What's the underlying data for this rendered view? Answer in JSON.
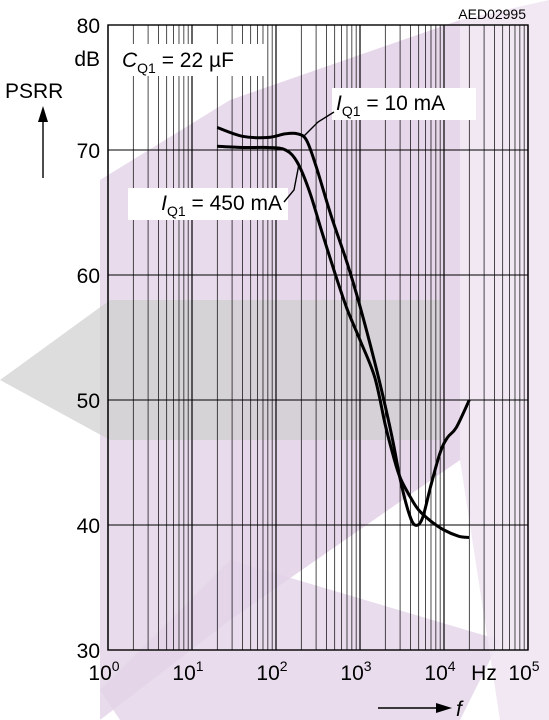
{
  "figure_id": "AED02995",
  "chart_data": {
    "type": "line",
    "y_unit": "dB",
    "ylabel": "PSRR",
    "xlabel": "f",
    "x_unit": "Hz",
    "x_scale": "log",
    "xlim": [
      1,
      100000
    ],
    "ylim": [
      30,
      80
    ],
    "grid": true,
    "x_ticks": [
      {
        "base": "10",
        "exp": "0"
      },
      {
        "base": "10",
        "exp": "1"
      },
      {
        "base": "10",
        "exp": "2"
      },
      {
        "base": "10",
        "exp": "3"
      },
      {
        "base": "10",
        "exp": "4"
      },
      {
        "base": "10",
        "exp": "5"
      }
    ],
    "y_ticks": [
      "30",
      "40",
      "50",
      "60",
      "70",
      "80"
    ],
    "condition": {
      "symbol": "C",
      "sub": "Q1",
      "value": "= 22 µF"
    },
    "series": [
      {
        "label": {
          "symbol": "I",
          "sub": "Q1",
          "value": "= 10 mA"
        },
        "x": [
          20,
          40,
          80,
          130,
          180,
          230,
          300,
          450,
          700,
          1000,
          1500,
          2000,
          2500,
          3000,
          3800,
          4500,
          5500,
          7000,
          9000,
          11000,
          14000,
          20000
        ],
        "y": [
          71.8,
          71.1,
          71.0,
          71.3,
          71.3,
          70.8,
          68.7,
          64.8,
          61.0,
          57.5,
          53.0,
          49.5,
          46.5,
          43.7,
          41.0,
          40.0,
          40.5,
          43.2,
          45.8,
          47.0,
          47.8,
          50.0
        ]
      },
      {
        "label": {
          "symbol": "I",
          "sub": "Q1",
          "value": "= 450 mA"
        },
        "x": [
          20,
          40,
          80,
          130,
          180,
          250,
          350,
          500,
          700,
          1000,
          1500,
          2000,
          2500,
          3000,
          4000,
          5000,
          7000,
          10000,
          15000,
          20000
        ],
        "y": [
          70.3,
          70.2,
          70.2,
          70.0,
          69.0,
          66.7,
          63.5,
          60.2,
          57.3,
          54.8,
          51.8,
          48.0,
          45.5,
          43.8,
          42.2,
          41.2,
          40.3,
          39.6,
          39.1,
          39.0
        ]
      }
    ]
  }
}
